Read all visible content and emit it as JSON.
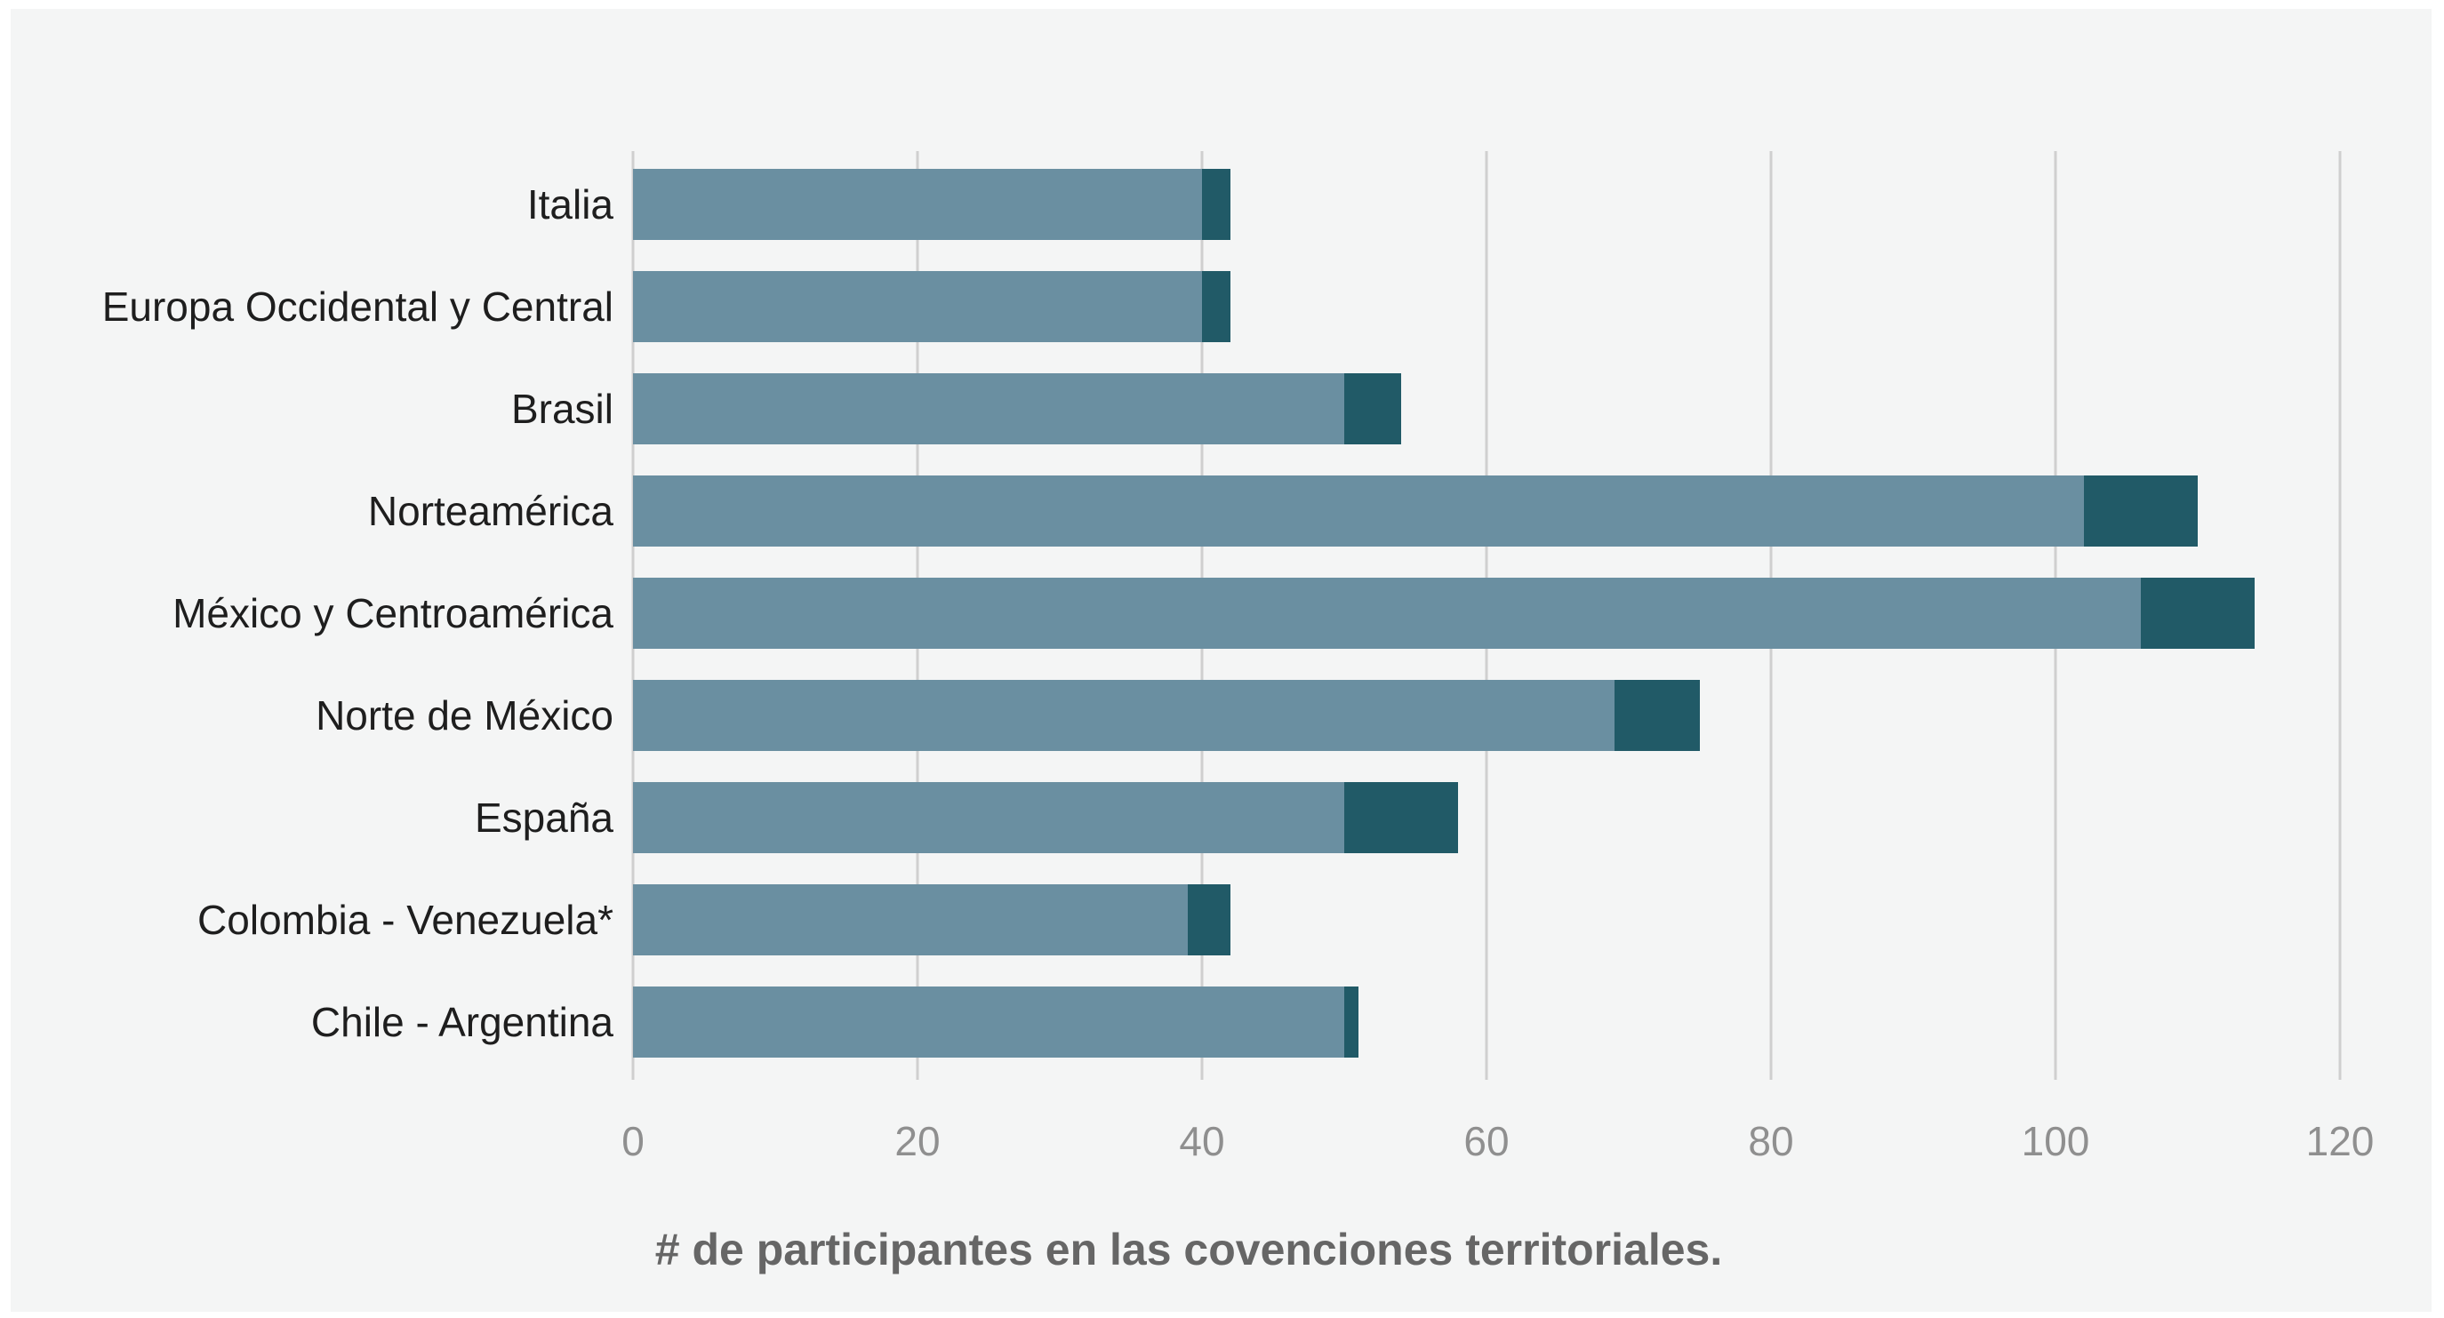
{
  "chart_data": {
    "type": "bar",
    "orientation": "horizontal",
    "stacked": true,
    "categories": [
      "Italia",
      "Europa Occidental y Central",
      "Brasil",
      "Norteamérica",
      "México y Centroamérica",
      "Norte de México",
      "España",
      "Colombia - Venezuela*",
      "Chile - Argentina"
    ],
    "series": [
      {
        "color": "#6a8fa1",
        "values": [
          40,
          40,
          50,
          102,
          106,
          69,
          50,
          39,
          50
        ]
      },
      {
        "color": "#215a67",
        "values": [
          2,
          2,
          4,
          8,
          8,
          6,
          8,
          3,
          1
        ]
      }
    ],
    "xlim": [
      0,
      120
    ],
    "xticks": [
      0,
      20,
      40,
      60,
      80,
      100,
      120
    ],
    "xlabel": "# de participantes en las covenciones territoriales.",
    "grid": "vertical",
    "legend": "none"
  }
}
